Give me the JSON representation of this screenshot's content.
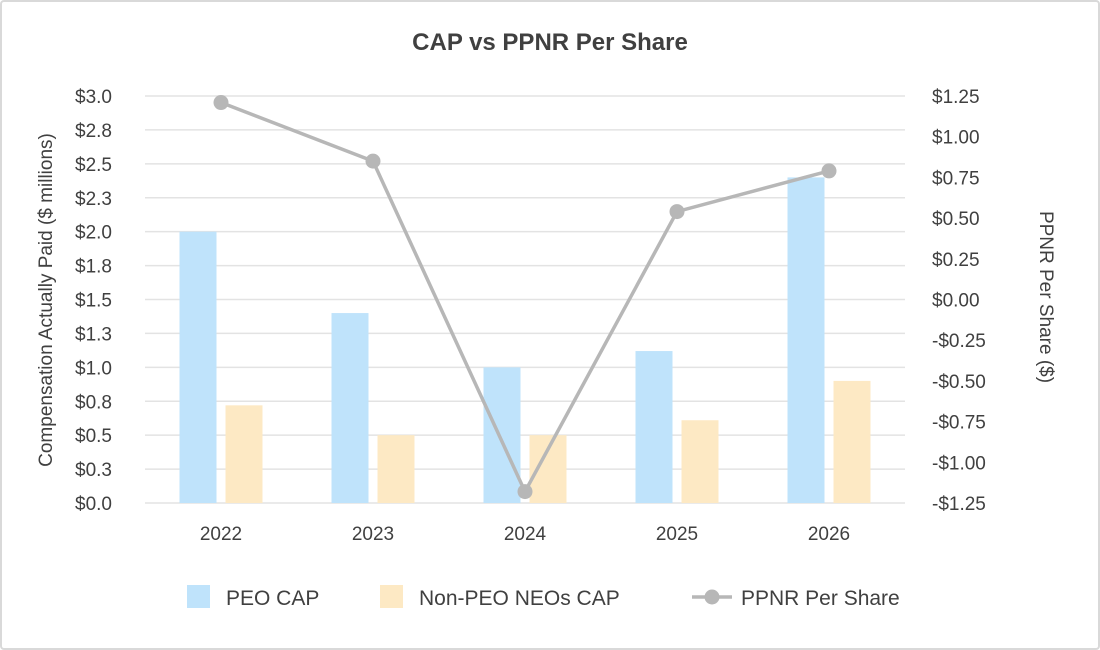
{
  "chart_data": {
    "type": "bar",
    "title": "CAP vs PPNR Per Share",
    "categories": [
      "2022",
      "2023",
      "2024",
      "2025",
      "2026"
    ],
    "y_left": {
      "label": "Compensation Actually Paid ($ millions)",
      "range": [
        0,
        3.0
      ],
      "ticks": [
        0,
        0.25,
        0.5,
        0.75,
        1.0,
        1.25,
        1.5,
        1.75,
        2.0,
        2.25,
        2.5,
        2.75,
        3.0
      ],
      "tick_labels": [
        "$0.0",
        "$0.3",
        "$0.5",
        "$0.8",
        "$1.0",
        "$1.3",
        "$1.5",
        "$1.8",
        "$2.0",
        "$2.3",
        "$2.5",
        "$2.8",
        "$3.0"
      ]
    },
    "y_right": {
      "label": "PPNR Per Share ($)",
      "range": [
        -1.25,
        1.25
      ],
      "ticks": [
        -1.25,
        -1.0,
        -0.75,
        -0.5,
        -0.25,
        0,
        0.25,
        0.5,
        0.75,
        1.0,
        1.25
      ],
      "tick_labels": [
        "-$1.25",
        "-$1.00",
        "-$0.75",
        "-$0.50",
        "-$0.25",
        "$0.00",
        "$0.25",
        "$0.50",
        "$0.75",
        "$1.00",
        "$1.25"
      ]
    },
    "grid": true,
    "legend_position": "bottom",
    "series": [
      {
        "name": "PEO CAP",
        "type": "bar",
        "axis": "left",
        "color": "#bfe3fb",
        "values": [
          2.0,
          1.4,
          1.0,
          1.12,
          2.4
        ]
      },
      {
        "name": "Non-PEO NEOs CAP",
        "type": "bar",
        "axis": "left",
        "color": "#fde9c4",
        "values": [
          0.72,
          0.5,
          0.5,
          0.61,
          0.9
        ]
      },
      {
        "name": "PPNR Per Share",
        "type": "line",
        "axis": "right",
        "color": "#b7b7b7",
        "values": [
          1.21,
          0.85,
          -1.18,
          0.54,
          0.79
        ]
      }
    ]
  }
}
